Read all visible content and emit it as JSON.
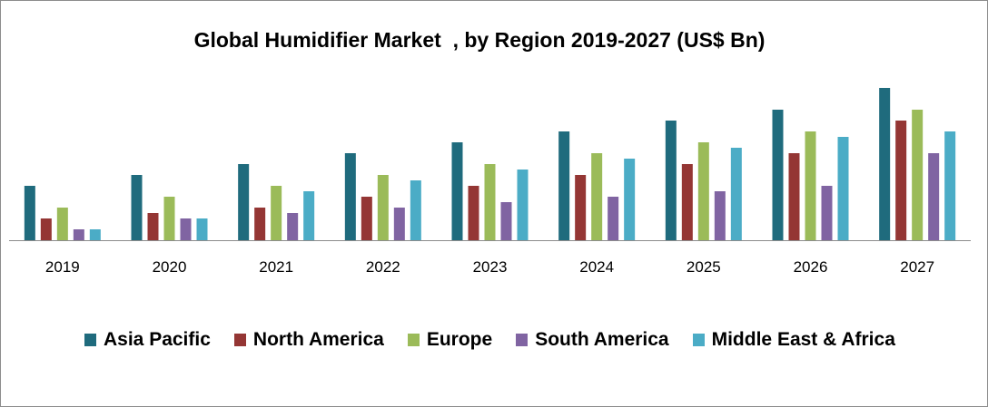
{
  "chart_data": {
    "type": "bar",
    "title": "Global Humidifier Market  , by Region 2019-2027 (US$ Bn)",
    "xlabel": "",
    "ylabel": "",
    "categories": [
      "2019",
      "2020",
      "2021",
      "2022",
      "2023",
      "2024",
      "2025",
      "2026",
      "2027"
    ],
    "series": [
      {
        "name": "Asia Pacific",
        "color": "#1f6b7d",
        "values": [
          5,
          6,
          7,
          8,
          9,
          10,
          11,
          12,
          14
        ]
      },
      {
        "name": "North America",
        "color": "#943634",
        "values": [
          2,
          2.5,
          3,
          4,
          5,
          6,
          7,
          8,
          11
        ]
      },
      {
        "name": "Europe",
        "color": "#9bbb59",
        "values": [
          3,
          4,
          5,
          6,
          7,
          8,
          9,
          10,
          12
        ]
      },
      {
        "name": "South America",
        "color": "#8064a2",
        "values": [
          1,
          2,
          2.5,
          3,
          3.5,
          4,
          4.5,
          5,
          8
        ]
      },
      {
        "name": "Middle East & Africa",
        "color": "#4bacc6",
        "values": [
          1,
          2,
          4.5,
          5.5,
          6.5,
          7.5,
          8.5,
          9.5,
          10
        ]
      }
    ],
    "ylim": [
      0,
      14
    ],
    "grid": false,
    "legend_position": "bottom"
  }
}
